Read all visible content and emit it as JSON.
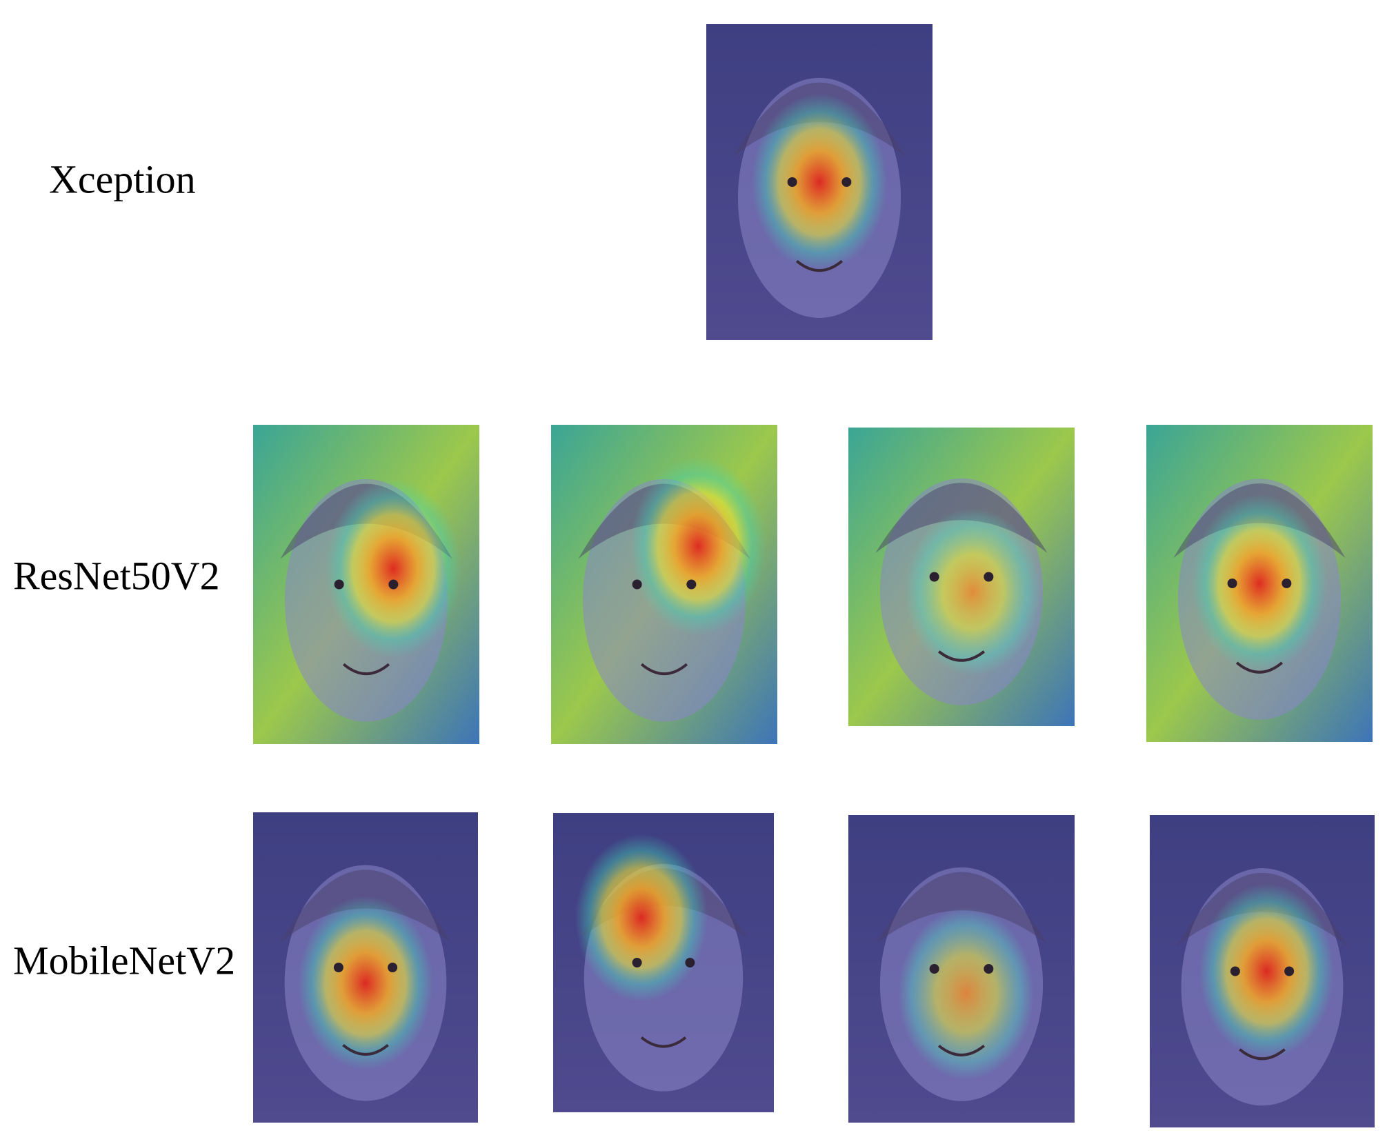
{
  "rows": [
    {
      "label": "Xception"
    },
    {
      "label": "ResNet50V2"
    },
    {
      "label": "MobileNetV2"
    }
  ]
}
